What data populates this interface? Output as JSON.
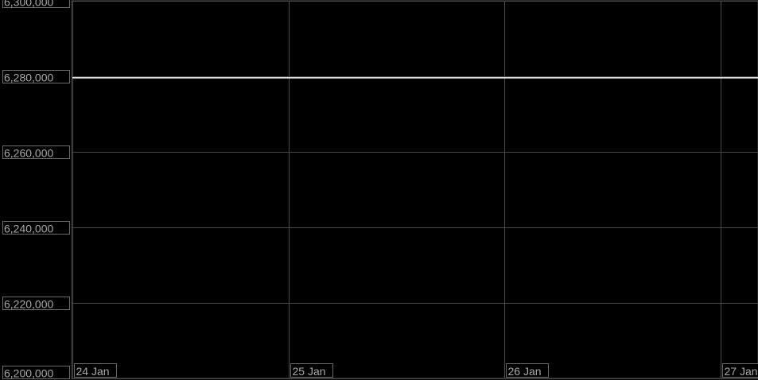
{
  "chart_data": {
    "type": "line",
    "title": "",
    "xlabel": "",
    "ylabel": "",
    "x_ticks": [
      "24 Jan",
      "25 Jan",
      "26 Jan",
      "27 Jan"
    ],
    "y_ticks": [
      "6,300,000",
      "6,280,000",
      "6,260,000",
      "6,240,000",
      "6,220,000",
      "6,200,000"
    ],
    "ylim": [
      6200000,
      6300000
    ],
    "xlim": [
      "24 Jan",
      "27 Jan"
    ],
    "grid": true,
    "series": [
      {
        "x": [
          "24 Jan",
          "27 Jan"
        ],
        "y": [
          6279600,
          6279600
        ],
        "color": "#ffffff"
      }
    ],
    "background": "#000000",
    "grid_color": "#4a4a4a"
  }
}
